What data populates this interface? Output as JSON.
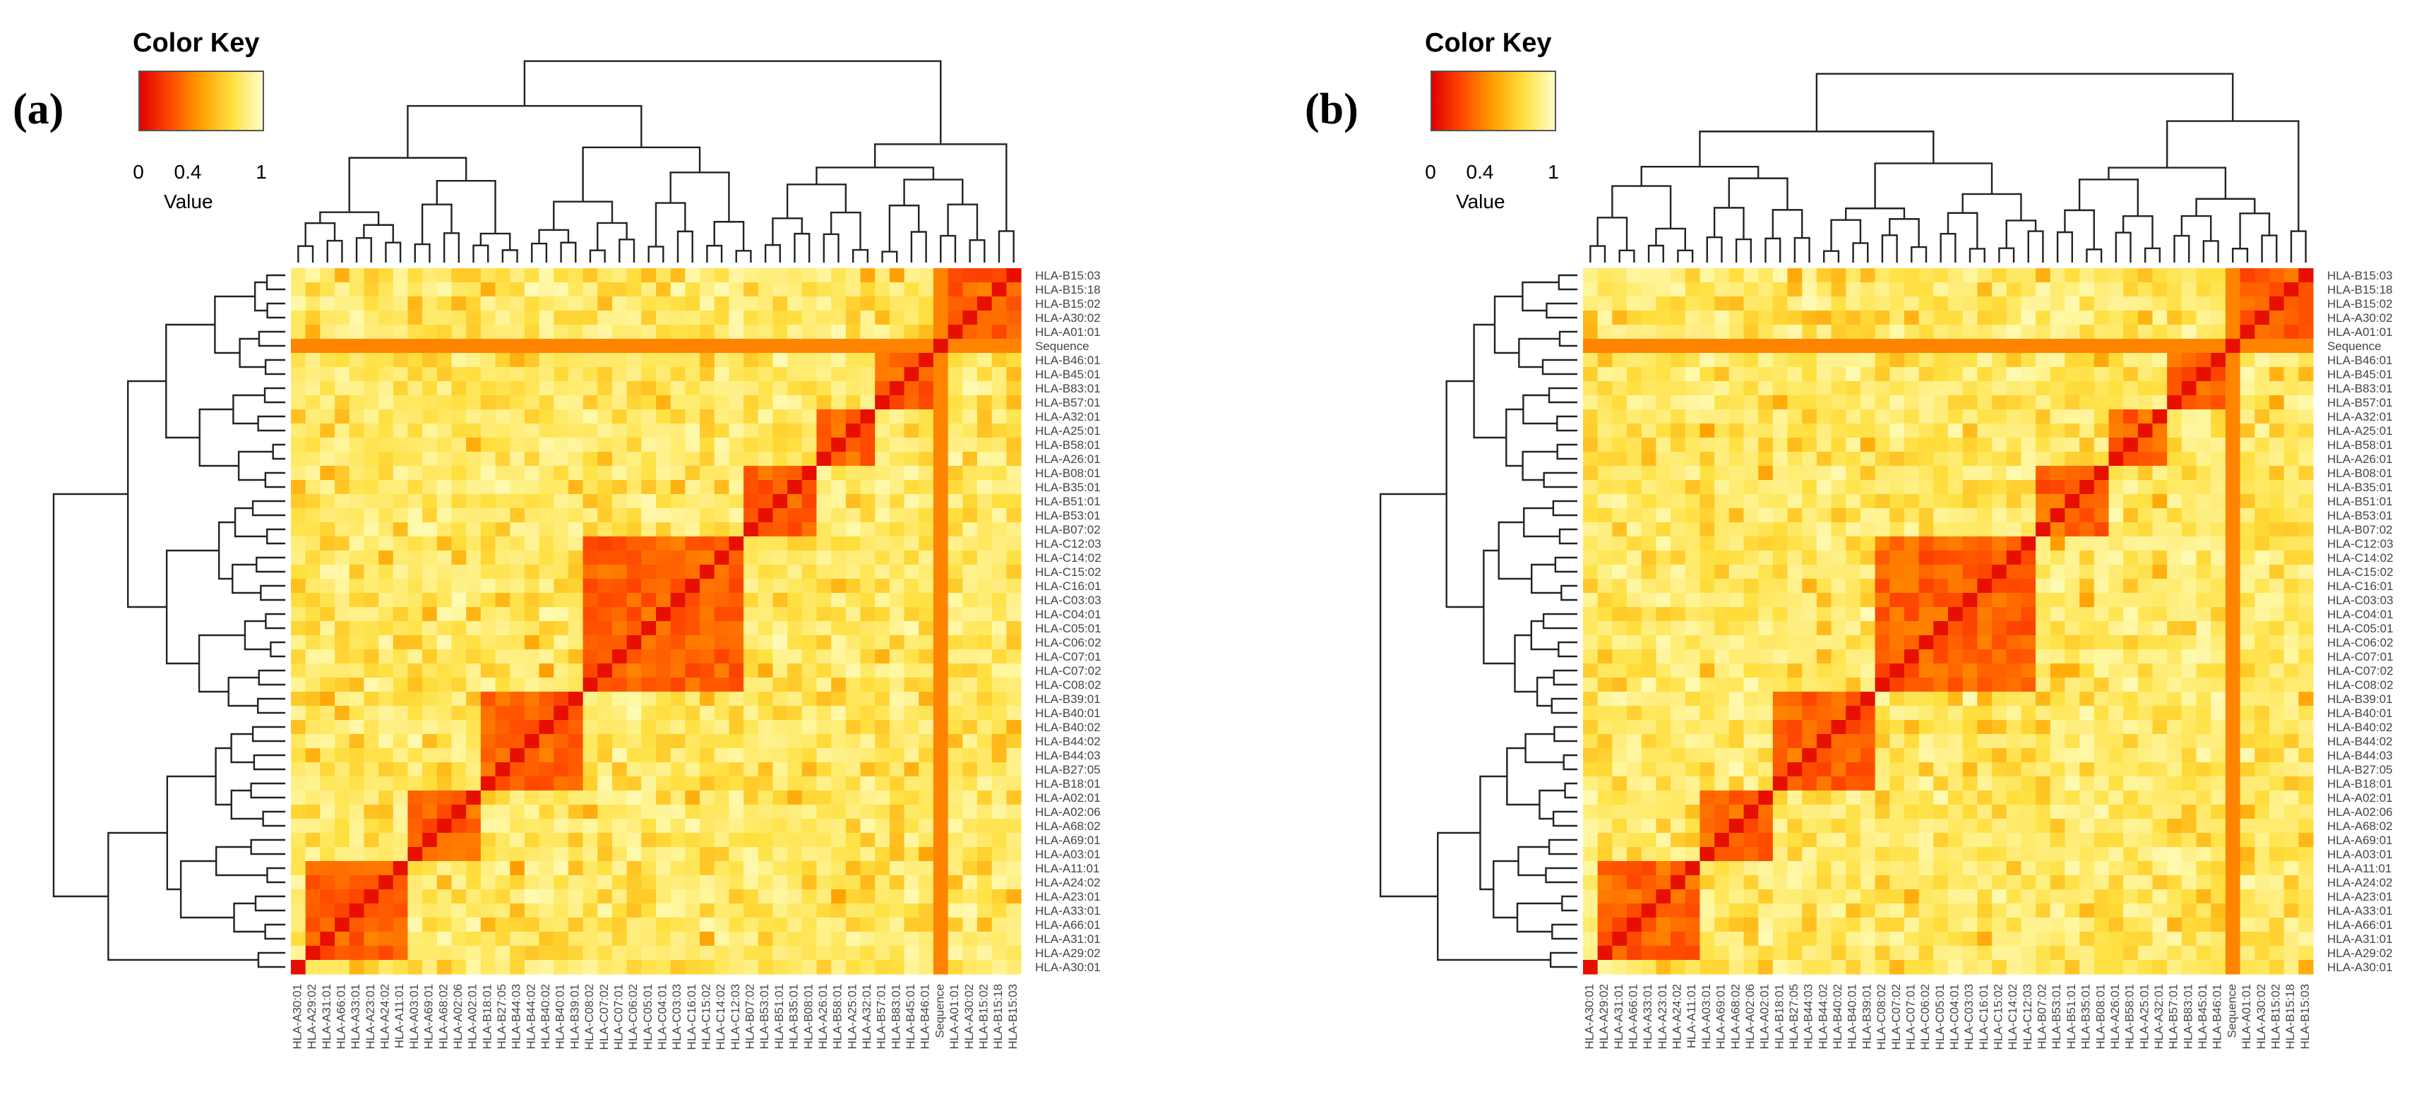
{
  "panels": [
    {
      "label": "(a)",
      "color_key": {
        "title": "Color Key",
        "ticks": [
          "0",
          "0.4",
          "1"
        ],
        "caption": "Value"
      },
      "row_labels": [
        "HLA-B15:03",
        "HLA-B15:18",
        "HLA-B15:02",
        "HLA-A30:02",
        "HLA-A01:01",
        "Sequence",
        "HLA-B46:01",
        "HLA-B45:01",
        "HLA-B83:01",
        "HLA-B57:01",
        "HLA-A32:01",
        "HLA-A25:01",
        "HLA-B58:01",
        "HLA-A26:01",
        "HLA-B08:01",
        "HLA-B35:01",
        "HLA-B51:01",
        "HLA-B53:01",
        "HLA-B07:02",
        "HLA-C12:03",
        "HLA-C14:02",
        "HLA-C15:02",
        "HLA-C16:01",
        "HLA-C03:03",
        "HLA-C04:01",
        "HLA-C05:01",
        "HLA-C06:02",
        "HLA-C07:01",
        "HLA-C07:02",
        "HLA-C08:02",
        "HLA-B39:01",
        "HLA-B40:01",
        "HLA-B40:02",
        "HLA-B44:02",
        "HLA-B44:03",
        "HLA-B27:05",
        "HLA-B18:01",
        "HLA-A02:01",
        "HLA-A02:06",
        "HLA-A68:02",
        "HLA-A69:01",
        "HLA-A03:01",
        "HLA-A11:01",
        "HLA-A24:02",
        "HLA-A23:01",
        "HLA-A33:01",
        "HLA-A66:01",
        "HLA-A31:01",
        "HLA-A29:02",
        "HLA-A30:01"
      ],
      "col_labels": [
        "HLA-A30:01",
        "HLA-A29:02",
        "HLA-A31:01",
        "HLA-A66:01",
        "HLA-A33:01",
        "HLA-A23:01",
        "HLA-A24:02",
        "HLA-A11:01",
        "HLA-A03:01",
        "HLA-A69:01",
        "HLA-A68:02",
        "HLA-A02:06",
        "HLA-A02:01",
        "HLA-B18:01",
        "HLA-B27:05",
        "HLA-B44:03",
        "HLA-B44:02",
        "HLA-B40:02",
        "HLA-B40:01",
        "HLA-B39:01",
        "HLA-C08:02",
        "HLA-C07:02",
        "HLA-C07:01",
        "HLA-C06:02",
        "HLA-C05:01",
        "HLA-C04:01",
        "HLA-C03:03",
        "HLA-C16:01",
        "HLA-C15:02",
        "HLA-C14:02",
        "HLA-C12:03",
        "HLA-B07:02",
        "HLA-B53:01",
        "HLA-B51:01",
        "HLA-B35:01",
        "HLA-B08:01",
        "HLA-A26:01",
        "HLA-B58:01",
        "HLA-A25:01",
        "HLA-A32:01",
        "HLA-B57:01",
        "HLA-B83:01",
        "HLA-B45:01",
        "HLA-B46:01",
        "Sequence",
        "HLA-A01:01",
        "HLA-A30:02",
        "HLA-B15:02",
        "HLA-B15:18",
        "HLA-B15:03"
      ]
    },
    {
      "label": "(b)",
      "color_key": {
        "title": "Color Key",
        "ticks": [
          "0",
          "0.4",
          "1"
        ],
        "caption": "Value"
      },
      "row_labels": [
        "HLA-B15:03",
        "HLA-B15:18",
        "HLA-B15:02",
        "HLA-A30:02",
        "HLA-A01:01",
        "Sequence",
        "HLA-B46:01",
        "HLA-B45:01",
        "HLA-B83:01",
        "HLA-B57:01",
        "HLA-A32:01",
        "HLA-A25:01",
        "HLA-B58:01",
        "HLA-A26:01",
        "HLA-B08:01",
        "HLA-B35:01",
        "HLA-B51:01",
        "HLA-B53:01",
        "HLA-B07:02",
        "HLA-C12:03",
        "HLA-C14:02",
        "HLA-C15:02",
        "HLA-C16:01",
        "HLA-C03:03",
        "HLA-C04:01",
        "HLA-C05:01",
        "HLA-C06:02",
        "HLA-C07:01",
        "HLA-C07:02",
        "HLA-C08:02",
        "HLA-B39:01",
        "HLA-B40:01",
        "HLA-B40:02",
        "HLA-B44:02",
        "HLA-B44:03",
        "HLA-B27:05",
        "HLA-B18:01",
        "HLA-A02:01",
        "HLA-A02:06",
        "HLA-A68:02",
        "HLA-A69:01",
        "HLA-A03:01",
        "HLA-A11:01",
        "HLA-A24:02",
        "HLA-A23:01",
        "HLA-A33:01",
        "HLA-A66:01",
        "HLA-A31:01",
        "HLA-A29:02",
        "HLA-A30:01"
      ],
      "col_labels": [
        "HLA-A30:01",
        "HLA-A29:02",
        "HLA-A31:01",
        "HLA-A66:01",
        "HLA-A33:01",
        "HLA-A23:01",
        "HLA-A24:02",
        "HLA-A11:01",
        "HLA-A03:01",
        "HLA-A69:01",
        "HLA-A68:02",
        "HLA-A02:06",
        "HLA-A02:01",
        "HLA-B18:01",
        "HLA-B27:05",
        "HLA-B44:03",
        "HLA-B44:02",
        "HLA-B40:02",
        "HLA-B40:01",
        "HLA-B39:01",
        "HLA-C08:02",
        "HLA-C07:02",
        "HLA-C07:01",
        "HLA-C06:02",
        "HLA-C05:01",
        "HLA-C04:01",
        "HLA-C03:03",
        "HLA-C16:01",
        "HLA-C15:02",
        "HLA-C14:02",
        "HLA-C12:03",
        "HLA-B07:02",
        "HLA-B53:01",
        "HLA-B51:01",
        "HLA-B35:01",
        "HLA-B08:01",
        "HLA-A26:01",
        "HLA-B58:01",
        "HLA-A25:01",
        "HLA-A32:01",
        "HLA-B57:01",
        "HLA-B83:01",
        "HLA-B45:01",
        "HLA-B46:01",
        "Sequence",
        "HLA-A01:01",
        "HLA-A30:02",
        "HLA-B15:02",
        "HLA-B15:18",
        "HLA-B15:03"
      ]
    }
  ],
  "chart_data": [
    {
      "type": "heatmap",
      "title": "(a)",
      "value_range": [
        0,
        1
      ],
      "colormap": [
        "#e00000",
        "#ff4a00",
        "#ffa000",
        "#ffe040",
        "#ffffc8"
      ],
      "clusters": [
        [
          0,
          4
        ],
        [
          6,
          9
        ],
        [
          10,
          13
        ],
        [
          14,
          18
        ],
        [
          19,
          29
        ],
        [
          30,
          36
        ],
        [
          37,
          41
        ],
        [
          42,
          48
        ]
      ],
      "sequence_index": 5,
      "diag_value": 0.05,
      "within_cluster_value": 0.22,
      "background_value": 0.82
    },
    {
      "type": "heatmap",
      "title": "(b)",
      "value_range": [
        0,
        1
      ],
      "colormap": [
        "#e00000",
        "#ff4a00",
        "#ffa000",
        "#ffe040",
        "#ffffc8"
      ],
      "clusters": [
        [
          0,
          4
        ],
        [
          6,
          9
        ],
        [
          10,
          13
        ],
        [
          14,
          18
        ],
        [
          19,
          29
        ],
        [
          30,
          36
        ],
        [
          37,
          41
        ],
        [
          42,
          48
        ]
      ],
      "sequence_index": 5,
      "diag_value": 0.05,
      "within_cluster_value": 0.22,
      "background_value": 0.82
    }
  ]
}
